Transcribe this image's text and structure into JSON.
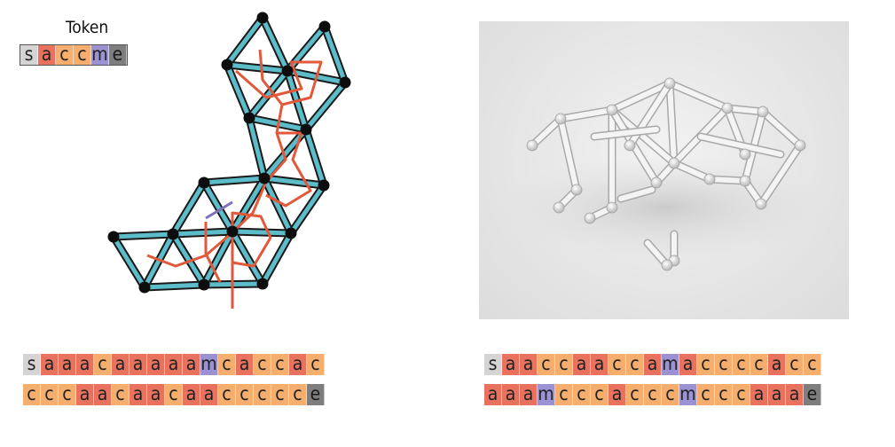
{
  "legend": {
    "title": "Token",
    "tokens": [
      "s",
      "a",
      "c",
      "c",
      "m",
      "e"
    ]
  },
  "token_colors": {
    "s": "#d4d4d4",
    "a": "#e8725e",
    "c": "#f5ae6e",
    "m": "#9a92d2",
    "e": "#7e7e7e"
  },
  "graph_colors": {
    "strut_fill": "#5dbcc9",
    "strut_outline": "#1a1a1a",
    "node": "#0d0d0d",
    "path_main": "#e2583a",
    "path_special": "#7f6fb8"
  },
  "sequences": {
    "left_row1": [
      "s",
      "a",
      "a",
      "a",
      "c",
      "a",
      "a",
      "a",
      "a",
      "a",
      "m",
      "c",
      "a",
      "c",
      "c",
      "a",
      "c"
    ],
    "left_row2": [
      "c",
      "c",
      "c",
      "a",
      "a",
      "c",
      "a",
      "a",
      "c",
      "a",
      "a",
      "c",
      "c",
      "c",
      "c",
      "c",
      "e"
    ],
    "right_row1": [
      "s",
      "a",
      "a",
      "c",
      "c",
      "a",
      "a",
      "c",
      "c",
      "a",
      "m",
      "a",
      "c",
      "c",
      "c",
      "c",
      "a",
      "c",
      "c"
    ],
    "right_row2": [
      "a",
      "a",
      "a",
      "m",
      "c",
      "c",
      "c",
      "a",
      "c",
      "c",
      "c",
      "m",
      "c",
      "c",
      "c",
      "a",
      "a",
      "a",
      "e"
    ]
  }
}
